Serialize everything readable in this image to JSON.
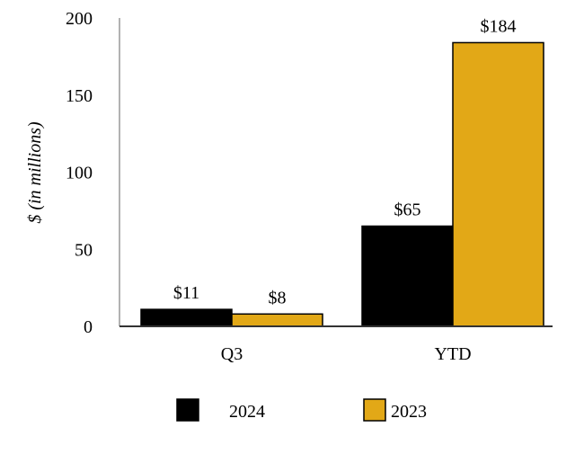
{
  "chart_data": {
    "type": "bar",
    "title": "",
    "xlabel": "",
    "ylabel": "$ (in millions)",
    "ylim": [
      0,
      200
    ],
    "yticks": [
      "0",
      "50",
      "100",
      "150",
      "200"
    ],
    "categories": [
      "Q3",
      "YTD"
    ],
    "series": [
      {
        "name": "2024",
        "color": "#000000",
        "values": [
          11,
          65
        ],
        "labels": [
          "$11",
          "$65"
        ]
      },
      {
        "name": "2023",
        "color": "#E2A817",
        "values": [
          8,
          184
        ],
        "labels": [
          "$8",
          "$184"
        ]
      }
    ],
    "legend": "bottom",
    "grid": false
  }
}
